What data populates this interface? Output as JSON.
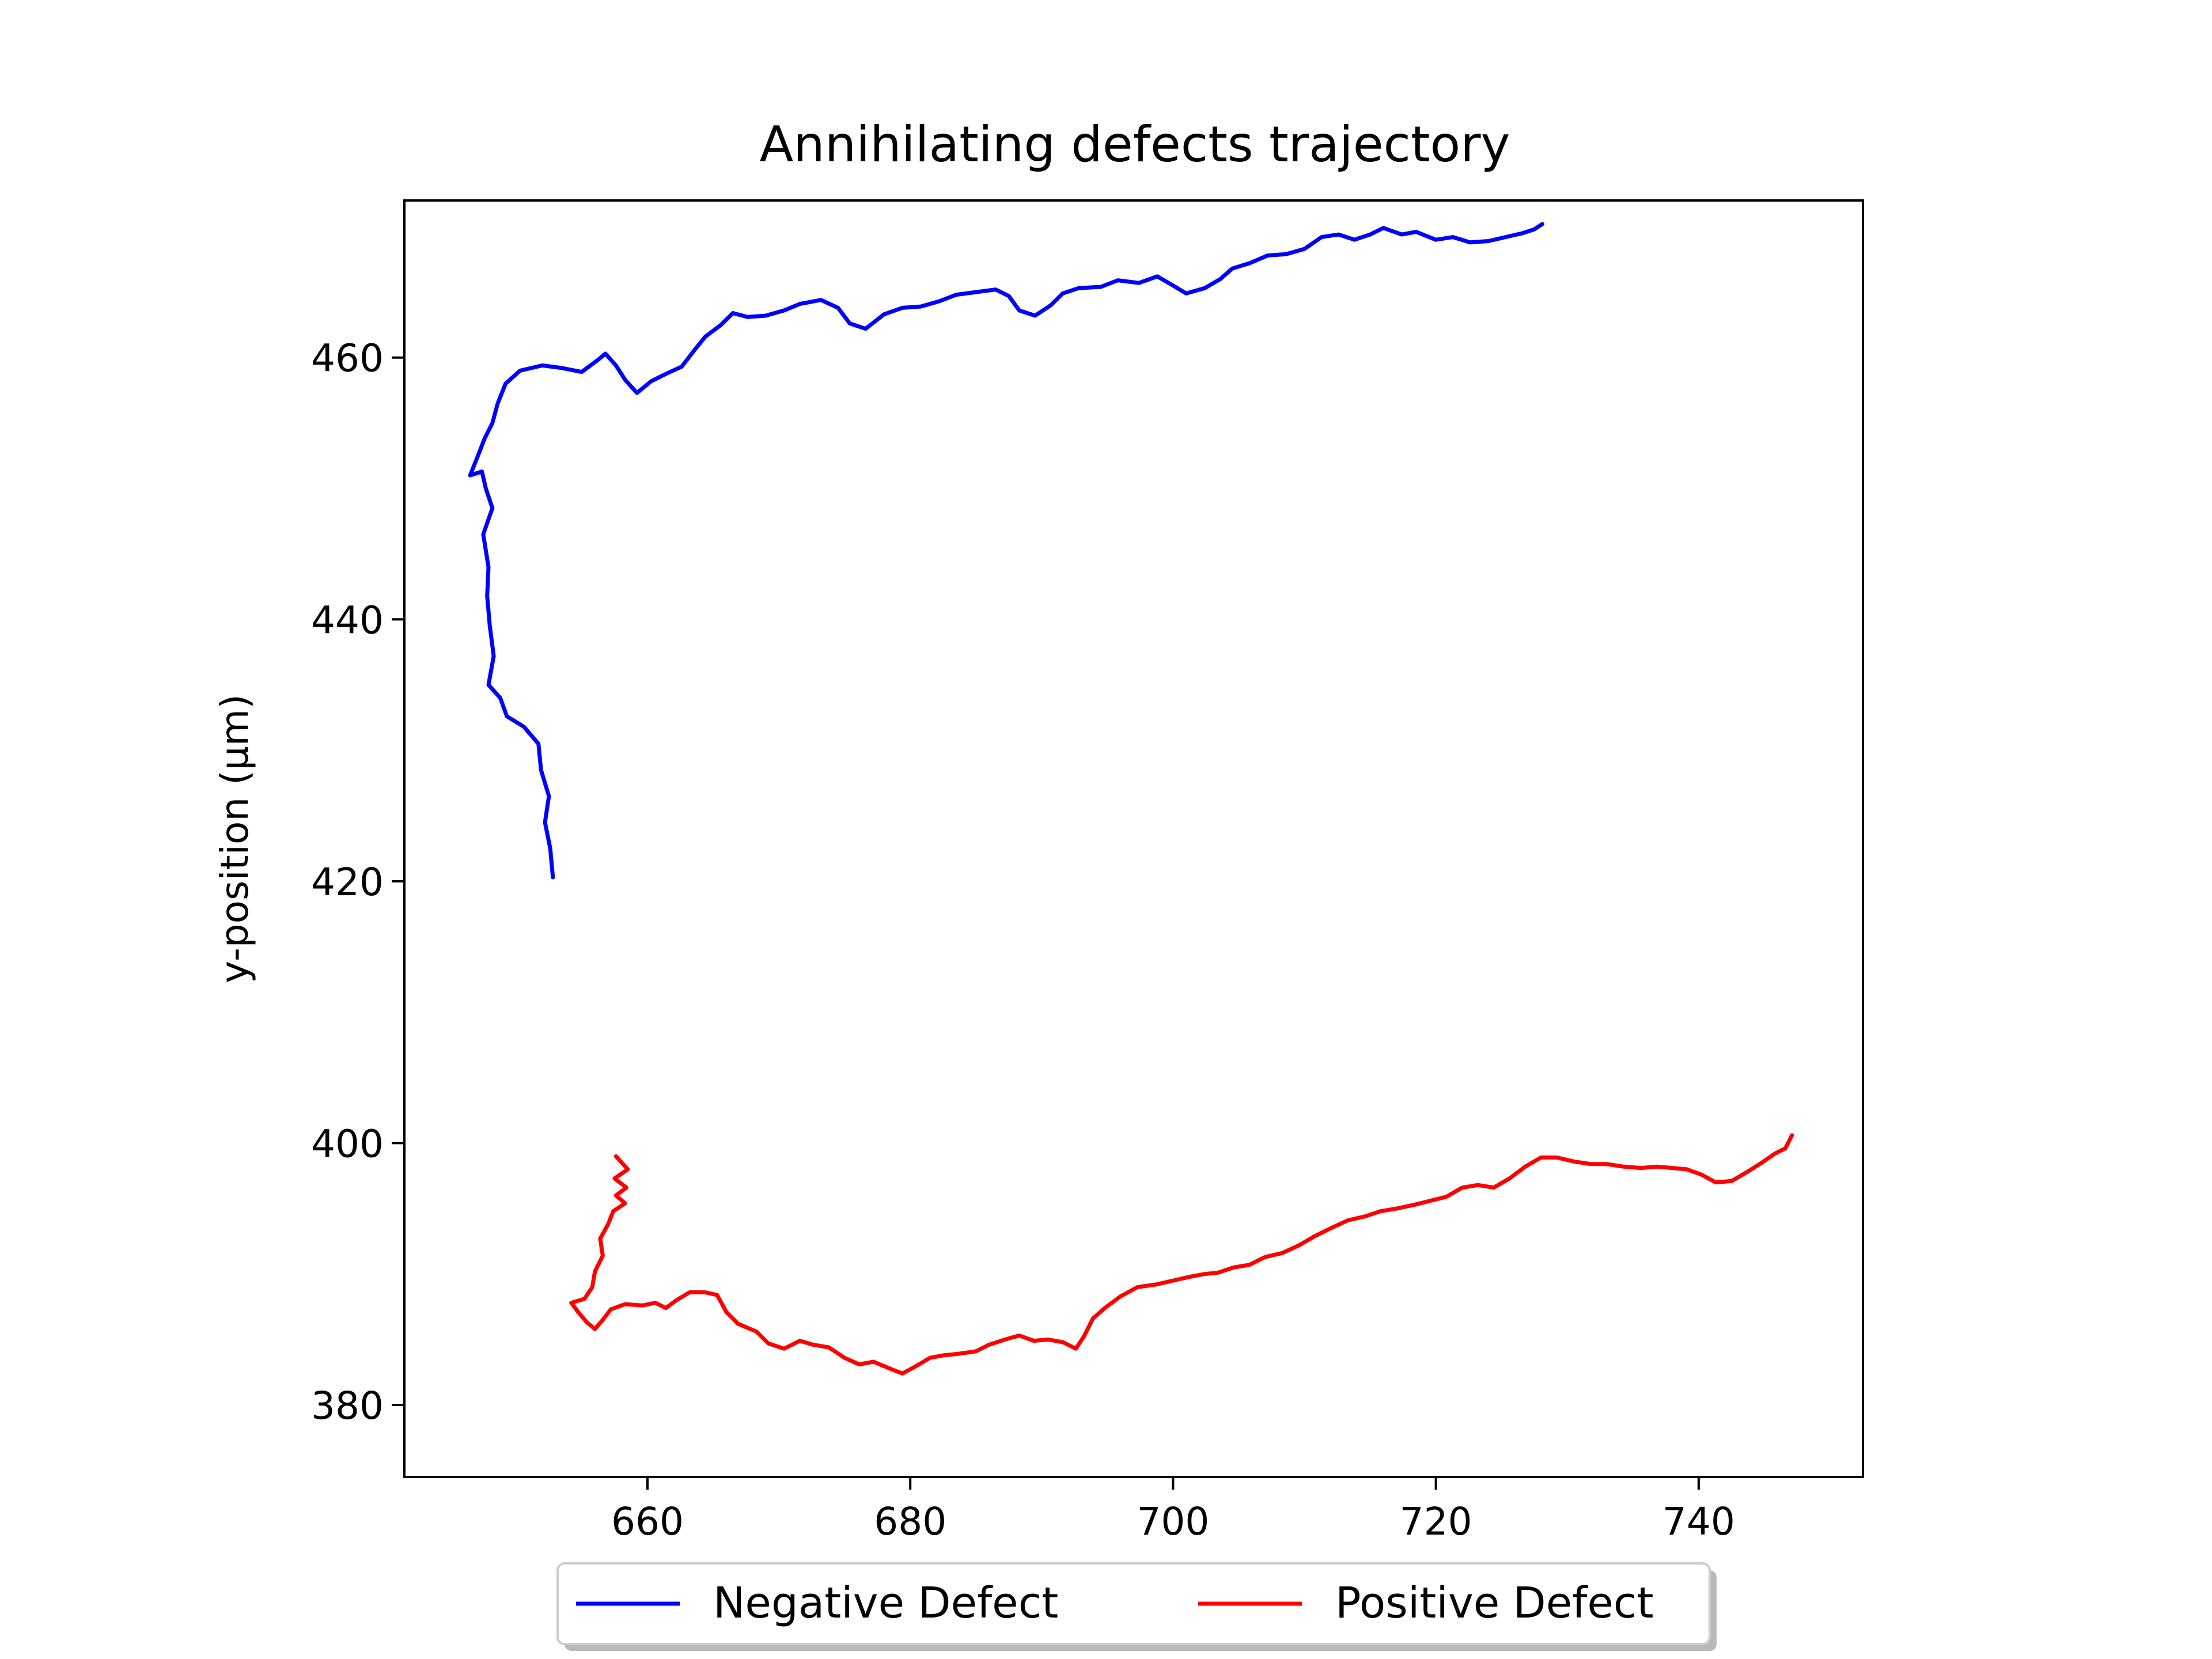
{
  "chart_data": {
    "type": "line",
    "title": "Annihilating defects trajectory",
    "xlabel": "",
    "ylabel": "y-position (μm)",
    "xlim": [
      641.5,
      752.5
    ],
    "ylim": [
      374.5,
      472.0
    ],
    "xticks": [
      660,
      680,
      700,
      720,
      740
    ],
    "yticks": [
      380,
      400,
      420,
      440,
      460
    ],
    "grid": false,
    "legend": {
      "location": "bottom-center",
      "columns": 2,
      "shadow": true
    },
    "series": [
      {
        "name": "Negative Defect",
        "color": "#0000ff",
        "points": [
          [
            652.8,
            420.3
          ],
          [
            652.6,
            422.5
          ],
          [
            652.2,
            424.5
          ],
          [
            652.5,
            426.5
          ],
          [
            651.9,
            428.5
          ],
          [
            651.7,
            430.5
          ],
          [
            650.6,
            431.8
          ],
          [
            649.3,
            432.6
          ],
          [
            648.8,
            434.0
          ],
          [
            647.9,
            435.0
          ],
          [
            648.3,
            437.2
          ],
          [
            648.0,
            439.5
          ],
          [
            647.8,
            441.8
          ],
          [
            647.9,
            444.0
          ],
          [
            647.5,
            446.5
          ],
          [
            648.2,
            448.5
          ],
          [
            647.7,
            450.0
          ],
          [
            647.4,
            451.3
          ],
          [
            646.5,
            451.0
          ],
          [
            647.1,
            452.5
          ],
          [
            647.6,
            453.8
          ],
          [
            648.2,
            455.0
          ],
          [
            648.6,
            456.5
          ],
          [
            649.2,
            458.0
          ],
          [
            650.3,
            459.0
          ],
          [
            652.0,
            459.4
          ],
          [
            653.5,
            459.2
          ],
          [
            655.0,
            458.9
          ],
          [
            656.2,
            459.8
          ],
          [
            656.8,
            460.3
          ],
          [
            657.6,
            459.4
          ],
          [
            658.3,
            458.3
          ],
          [
            659.2,
            457.3
          ],
          [
            660.3,
            458.2
          ],
          [
            661.5,
            458.8
          ],
          [
            662.6,
            459.3
          ],
          [
            663.6,
            460.6
          ],
          [
            664.4,
            461.6
          ],
          [
            665.6,
            462.5
          ],
          [
            666.5,
            463.4
          ],
          [
            667.6,
            463.1
          ],
          [
            669.0,
            463.2
          ],
          [
            670.4,
            463.6
          ],
          [
            671.6,
            464.1
          ],
          [
            673.2,
            464.4
          ],
          [
            674.5,
            463.8
          ],
          [
            675.4,
            462.6
          ],
          [
            676.6,
            462.2
          ],
          [
            678.0,
            463.3
          ],
          [
            679.4,
            463.8
          ],
          [
            680.8,
            463.9
          ],
          [
            682.2,
            464.3
          ],
          [
            683.5,
            464.8
          ],
          [
            685.0,
            465.0
          ],
          [
            686.5,
            465.2
          ],
          [
            687.5,
            464.7
          ],
          [
            688.3,
            463.6
          ],
          [
            689.5,
            463.2
          ],
          [
            690.7,
            464.0
          ],
          [
            691.6,
            464.9
          ],
          [
            692.8,
            465.3
          ],
          [
            694.5,
            465.4
          ],
          [
            695.8,
            465.9
          ],
          [
            697.4,
            465.7
          ],
          [
            698.8,
            466.2
          ],
          [
            700.0,
            465.5
          ],
          [
            701.0,
            464.9
          ],
          [
            702.4,
            465.3
          ],
          [
            703.6,
            466.0
          ],
          [
            704.5,
            466.8
          ],
          [
            705.8,
            467.2
          ],
          [
            707.2,
            467.8
          ],
          [
            708.6,
            467.9
          ],
          [
            710.0,
            468.3
          ],
          [
            711.3,
            469.2
          ],
          [
            712.6,
            469.4
          ],
          [
            713.8,
            469.0
          ],
          [
            715.0,
            469.4
          ],
          [
            716.0,
            469.9
          ],
          [
            717.4,
            469.4
          ],
          [
            718.5,
            469.6
          ],
          [
            720.0,
            469.0
          ],
          [
            721.3,
            469.2
          ],
          [
            722.6,
            468.8
          ],
          [
            724.0,
            468.9
          ],
          [
            725.3,
            469.2
          ],
          [
            726.6,
            469.5
          ],
          [
            727.5,
            469.8
          ],
          [
            728.1,
            470.2
          ]
        ]
      },
      {
        "name": "Positive Defect",
        "color": "#ff0000",
        "points": [
          [
            657.6,
            399.0
          ],
          [
            658.5,
            398.0
          ],
          [
            657.5,
            397.3
          ],
          [
            658.4,
            396.6
          ],
          [
            657.6,
            396.0
          ],
          [
            658.3,
            395.4
          ],
          [
            657.4,
            394.8
          ],
          [
            657.0,
            393.8
          ],
          [
            656.4,
            392.7
          ],
          [
            656.6,
            391.4
          ],
          [
            656.0,
            390.2
          ],
          [
            655.8,
            389.0
          ],
          [
            655.2,
            388.1
          ],
          [
            654.2,
            387.8
          ],
          [
            654.8,
            387.0
          ],
          [
            655.4,
            386.3
          ],
          [
            656.0,
            385.8
          ],
          [
            656.6,
            386.5
          ],
          [
            657.2,
            387.3
          ],
          [
            658.3,
            387.7
          ],
          [
            659.6,
            387.6
          ],
          [
            660.6,
            387.8
          ],
          [
            661.4,
            387.4
          ],
          [
            662.2,
            388.0
          ],
          [
            663.2,
            388.6
          ],
          [
            664.4,
            388.6
          ],
          [
            665.3,
            388.4
          ],
          [
            666.0,
            387.1
          ],
          [
            666.9,
            386.2
          ],
          [
            668.3,
            385.6
          ],
          [
            669.2,
            384.7
          ],
          [
            670.4,
            384.3
          ],
          [
            671.6,
            384.9
          ],
          [
            672.6,
            384.6
          ],
          [
            673.8,
            384.4
          ],
          [
            675.0,
            383.6
          ],
          [
            676.1,
            383.1
          ],
          [
            677.2,
            383.3
          ],
          [
            678.4,
            382.8
          ],
          [
            679.4,
            382.4
          ],
          [
            680.5,
            383.0
          ],
          [
            681.5,
            383.6
          ],
          [
            682.6,
            383.8
          ],
          [
            683.6,
            383.9
          ],
          [
            685.0,
            384.1
          ],
          [
            686.0,
            384.6
          ],
          [
            687.2,
            385.0
          ],
          [
            688.3,
            385.3
          ],
          [
            689.4,
            384.9
          ],
          [
            690.5,
            385.0
          ],
          [
            691.6,
            384.8
          ],
          [
            692.6,
            384.3
          ],
          [
            693.2,
            385.2
          ],
          [
            693.9,
            386.6
          ],
          [
            694.8,
            387.4
          ],
          [
            696.0,
            388.3
          ],
          [
            697.3,
            389.0
          ],
          [
            698.7,
            389.2
          ],
          [
            700.0,
            389.5
          ],
          [
            701.3,
            389.8
          ],
          [
            702.4,
            390.0
          ],
          [
            703.4,
            390.1
          ],
          [
            704.6,
            390.5
          ],
          [
            705.8,
            390.7
          ],
          [
            707.0,
            391.3
          ],
          [
            708.3,
            391.6
          ],
          [
            709.6,
            392.2
          ],
          [
            710.8,
            392.9
          ],
          [
            712.0,
            393.5
          ],
          [
            713.3,
            394.1
          ],
          [
            714.6,
            394.4
          ],
          [
            715.8,
            394.8
          ],
          [
            717.0,
            395.0
          ],
          [
            718.4,
            395.3
          ],
          [
            719.6,
            395.6
          ],
          [
            720.8,
            395.9
          ],
          [
            722.0,
            396.6
          ],
          [
            723.2,
            396.8
          ],
          [
            724.4,
            396.6
          ],
          [
            725.6,
            397.3
          ],
          [
            726.8,
            398.2
          ],
          [
            728.0,
            398.9
          ],
          [
            729.2,
            398.9
          ],
          [
            730.5,
            398.6
          ],
          [
            731.8,
            398.4
          ],
          [
            733.0,
            398.4
          ],
          [
            734.3,
            398.2
          ],
          [
            735.6,
            398.1
          ],
          [
            736.8,
            398.2
          ],
          [
            738.0,
            398.1
          ],
          [
            739.1,
            398.0
          ],
          [
            740.2,
            397.6
          ],
          [
            741.3,
            397.0
          ],
          [
            742.5,
            397.1
          ],
          [
            743.7,
            397.8
          ],
          [
            744.8,
            398.5
          ],
          [
            745.8,
            399.2
          ],
          [
            746.6,
            399.6
          ],
          [
            747.1,
            400.6
          ]
        ]
      }
    ]
  }
}
